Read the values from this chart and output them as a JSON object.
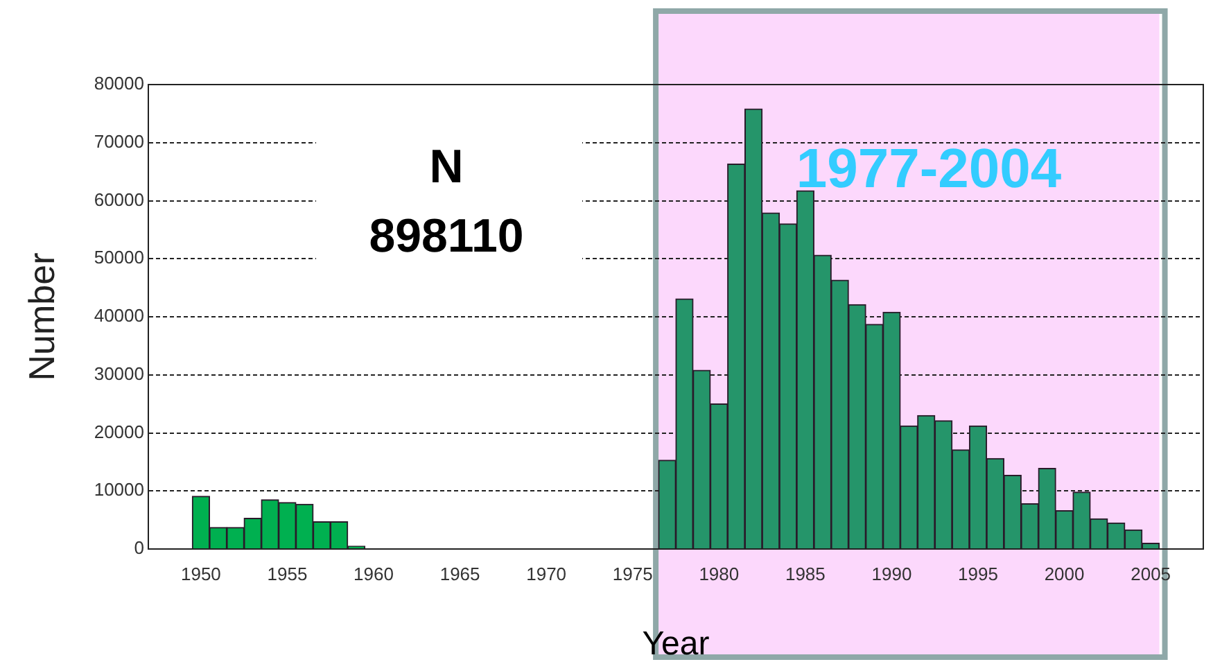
{
  "chart_data": {
    "type": "bar",
    "xlabel": "Year",
    "ylabel": "Number",
    "x": [
      1950,
      1951,
      1952,
      1953,
      1954,
      1955,
      1956,
      1957,
      1958,
      1959,
      1960,
      1961,
      1962,
      1963,
      1964,
      1965,
      1966,
      1967,
      1968,
      1969,
      1970,
      1971,
      1972,
      1973,
      1974,
      1975,
      1976,
      1977,
      1978,
      1979,
      1980,
      1981,
      1982,
      1983,
      1984,
      1985,
      1986,
      1987,
      1988,
      1989,
      1990,
      1991,
      1992,
      1993,
      1994,
      1995,
      1996,
      1997,
      1998,
      1999,
      2000,
      2001,
      2002,
      2003,
      2004,
      2005
    ],
    "values": [
      9100,
      3700,
      3700,
      5300,
      8500,
      8000,
      7700,
      4700,
      4700,
      500,
      0,
      0,
      0,
      0,
      0,
      0,
      0,
      0,
      0,
      0,
      0,
      0,
      0,
      0,
      0,
      0,
      0,
      15300,
      43100,
      30800,
      25000,
      66300,
      75800,
      57900,
      56000,
      61700,
      50600,
      46300,
      42100,
      38700,
      40800,
      21200,
      23000,
      22100,
      17100,
      21200,
      15600,
      12700,
      7800,
      13900,
      6600,
      9800,
      5200,
      4500,
      3300,
      1000
    ],
    "colors": [
      "#00b050",
      "#00b050",
      "#00b050",
      "#00b050",
      "#00b050",
      "#00b050",
      "#00b050",
      "#00b050",
      "#00b050",
      "#00b050",
      "#00b050",
      "#00b050",
      "#00b050",
      "#00b050",
      "#00b050",
      "#00b050",
      "#00b050",
      "#00b050",
      "#00b050",
      "#00b050",
      "#00b050",
      "#00b050",
      "#00b050",
      "#00b050",
      "#00b050",
      "#00b050",
      "#00b050",
      "#25956a",
      "#25956a",
      "#25956a",
      "#25956a",
      "#25956a",
      "#25956a",
      "#25956a",
      "#25956a",
      "#25956a",
      "#25956a",
      "#25956a",
      "#25956a",
      "#25956a",
      "#25956a",
      "#25956a",
      "#25956a",
      "#25956a",
      "#25956a",
      "#25956a",
      "#25956a",
      "#25956a",
      "#25956a",
      "#25956a",
      "#25956a",
      "#25956a",
      "#25956a",
      "#25956a",
      "#25956a",
      "#25956a"
    ],
    "xlim": [
      1949.5,
      2005.5
    ],
    "xticks": [
      1950,
      1955,
      1960,
      1965,
      1970,
      1975,
      1980,
      1985,
      1990,
      1995,
      2000,
      2005
    ],
    "ylim": [
      0,
      80000
    ],
    "yticks": [
      0,
      10000,
      20000,
      30000,
      40000,
      50000,
      60000,
      70000,
      80000
    ],
    "grid": "y",
    "bands": [
      {
        "axis": "x",
        "from": 1976.5,
        "to": 2005.5,
        "label": "1977-2004",
        "color": "#fcd8fc"
      }
    ],
    "annotations": [
      "N",
      "898110"
    ]
  }
}
